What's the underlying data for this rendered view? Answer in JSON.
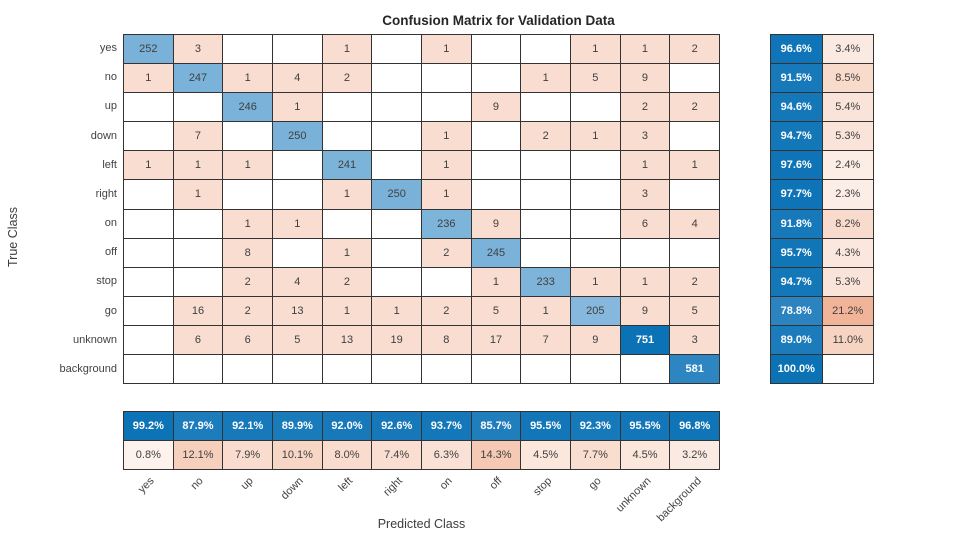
{
  "chart_data": {
    "type": "heatmap",
    "title": "Confusion Matrix for Validation Data",
    "xlabel": "Predicted Class",
    "ylabel": "True Class",
    "categories": [
      "yes",
      "no",
      "up",
      "down",
      "left",
      "right",
      "on",
      "off",
      "stop",
      "go",
      "unknown",
      "background"
    ],
    "matrix": [
      [
        252,
        3,
        0,
        0,
        1,
        0,
        1,
        0,
        0,
        1,
        1,
        2
      ],
      [
        1,
        247,
        1,
        4,
        2,
        0,
        0,
        0,
        1,
        5,
        9,
        0
      ],
      [
        0,
        0,
        246,
        1,
        0,
        0,
        0,
        9,
        0,
        0,
        2,
        2
      ],
      [
        0,
        7,
        0,
        250,
        0,
        0,
        1,
        0,
        2,
        1,
        3,
        0
      ],
      [
        1,
        1,
        1,
        0,
        241,
        0,
        1,
        0,
        0,
        0,
        1,
        1
      ],
      [
        0,
        1,
        0,
        0,
        1,
        250,
        1,
        0,
        0,
        0,
        3,
        0
      ],
      [
        0,
        0,
        1,
        1,
        0,
        0,
        236,
        9,
        0,
        0,
        6,
        4
      ],
      [
        0,
        0,
        8,
        0,
        1,
        0,
        2,
        245,
        0,
        0,
        0,
        0
      ],
      [
        0,
        0,
        2,
        4,
        2,
        0,
        0,
        1,
        233,
        1,
        1,
        2
      ],
      [
        0,
        16,
        2,
        13,
        1,
        1,
        2,
        5,
        1,
        205,
        9,
        5
      ],
      [
        0,
        6,
        6,
        5,
        13,
        19,
        8,
        17,
        7,
        9,
        751,
        3
      ],
      [
        0,
        0,
        0,
        0,
        0,
        0,
        0,
        0,
        0,
        0,
        0,
        581
      ]
    ],
    "row_summary": {
      "correct": [
        "96.6%",
        "91.5%",
        "94.6%",
        "94.7%",
        "97.6%",
        "97.7%",
        "91.8%",
        "95.7%",
        "94.7%",
        "78.8%",
        "89.0%",
        "100.0%"
      ],
      "incorrect": [
        "3.4%",
        "8.5%",
        "5.4%",
        "5.3%",
        "2.4%",
        "2.3%",
        "8.2%",
        "4.3%",
        "5.3%",
        "21.2%",
        "11.0%",
        ""
      ]
    },
    "col_summary": {
      "correct": [
        "99.2%",
        "87.9%",
        "92.1%",
        "89.9%",
        "92.0%",
        "92.6%",
        "93.7%",
        "85.7%",
        "95.5%",
        "92.3%",
        "95.5%",
        "96.8%"
      ],
      "incorrect": [
        "0.8%",
        "12.1%",
        "7.9%",
        "10.1%",
        "8.0%",
        "7.4%",
        "6.3%",
        "14.3%",
        "4.5%",
        "7.7%",
        "4.5%",
        "3.2%"
      ]
    },
    "legend_position": "none",
    "grid": "on",
    "colors": {
      "diag_lo": "#cfe3f3",
      "diag_hi": "#0b72b6",
      "offdiag": "#f8ddd0",
      "pink_lo": "#fdf4ef",
      "pink_hi": "#f0a988",
      "grid_line": "#333333",
      "text_dark": "#404040",
      "text_light": "#ffffff"
    }
  }
}
